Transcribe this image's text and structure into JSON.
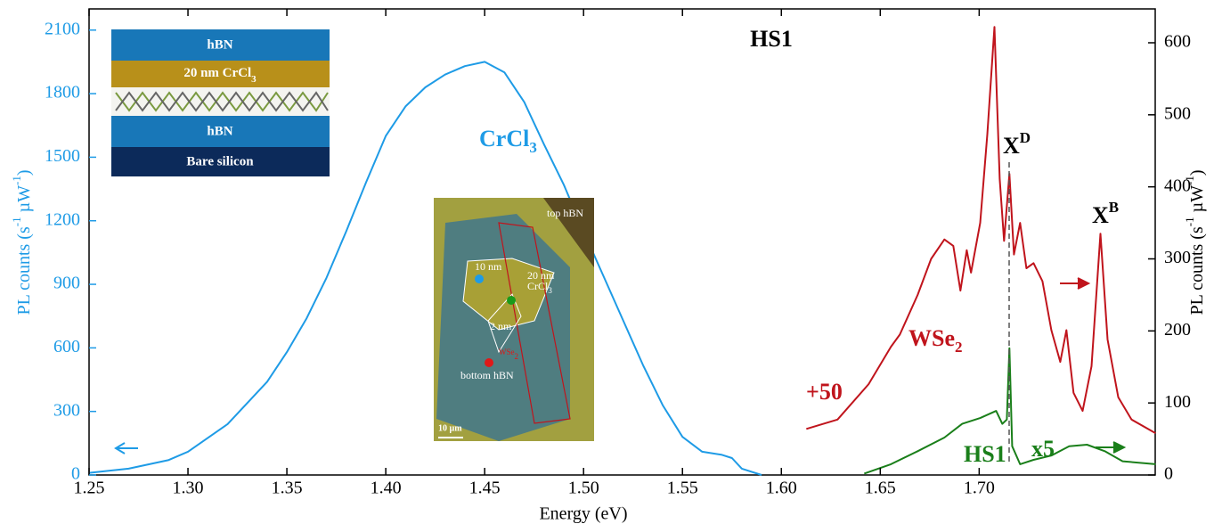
{
  "chart_data": {
    "type": "line",
    "title": "HS1",
    "xlabel": "Energy (eV)",
    "ylabel": [
      "PL counts (s",
      "-1",
      " µW",
      "-1",
      ")"
    ],
    "y2label": [
      "PL counts (s",
      "-1",
      " µW",
      "-1",
      ")"
    ],
    "xlim": [
      1.25,
      1.789
    ],
    "ylim": [
      0,
      2200
    ],
    "y2lim": [
      0,
      647
    ],
    "xticks": [
      1.25,
      {
        "value": 1.3,
        "label": "1.30"
      },
      1.35,
      {
        "value": 1.4,
        "label": "1.40"
      },
      1.45,
      {
        "value": 1.5,
        "label": "1.50"
      },
      1.55,
      {
        "value": 1.6,
        "label": "1.60"
      },
      1.65,
      {
        "value": 1.7,
        "label": "1.70"
      }
    ],
    "yticks": [
      0,
      300,
      600,
      900,
      1200,
      1500,
      1800,
      2100
    ],
    "y2ticks": [
      0,
      100,
      200,
      300,
      400,
      500,
      600
    ],
    "series": [
      {
        "color": "#1e9be6",
        "axis": "y",
        "x": [
          1.25,
          1.27,
          1.29,
          1.3,
          1.32,
          1.34,
          1.35,
          1.36,
          1.37,
          1.38,
          1.39,
          1.4,
          1.41,
          1.42,
          1.43,
          1.44,
          1.45,
          1.46,
          1.47,
          1.48,
          1.49,
          1.5,
          1.51,
          1.52,
          1.53,
          1.54,
          1.55,
          1.56,
          1.57,
          1.575,
          1.58,
          1.59
        ],
        "values": [
          10,
          30,
          70,
          110,
          240,
          440,
          580,
          740,
          930,
          1150,
          1380,
          1600,
          1740,
          1830,
          1890,
          1930,
          1950,
          1900,
          1760,
          1560,
          1370,
          1150,
          940,
          730,
          520,
          330,
          180,
          110,
          95,
          80,
          30,
          0
        ]
      },
      {
        "color": "#c0141c",
        "axis": "y2",
        "x": [
          1.6126,
          1.6284,
          1.6441,
          1.6554,
          1.6599,
          1.6689,
          1.6757,
          1.6824,
          1.6869,
          1.6905,
          1.6937,
          1.6959,
          1.7005,
          1.7041,
          1.7077,
          1.7104,
          1.7126,
          1.7153,
          1.7176,
          1.7207,
          1.7239,
          1.7275,
          1.732,
          1.7365,
          1.741,
          1.7441,
          1.7477,
          1.7523,
          1.7568,
          1.7613,
          1.7649,
          1.7703,
          1.777,
          1.7892
        ],
        "values": [
          64,
          77,
          126,
          178,
          195,
          250,
          300,
          327,
          318,
          256,
          312,
          281,
          350,
          473,
          622,
          411,
          325,
          418,
          306,
          350,
          287,
          294,
          269,
          201,
          157,
          201,
          114,
          89,
          151,
          335,
          188,
          108,
          77,
          58
        ]
      },
      {
        "color": "#1a7f1a",
        "axis": "y2",
        "x": [
          1.6419,
          1.6554,
          1.6689,
          1.6824,
          1.6914,
          1.7005,
          1.7086,
          1.7117,
          1.714,
          1.7153,
          1.7167,
          1.7207,
          1.7275,
          1.7365,
          1.7455,
          1.7545,
          1.7635,
          1.7725,
          1.7892
        ],
        "values": [
          2,
          15,
          33,
          52,
          71,
          79,
          89,
          71,
          77,
          176,
          40,
          15,
          21,
          27,
          40,
          42,
          33,
          19,
          15
        ]
      }
    ],
    "labels": [
      {
        "text": "CrCl",
        "sub": "3"
      },
      {
        "text": "+50"
      },
      {
        "text": "WSe",
        "sub": "2"
      },
      {
        "text": "HS1"
      },
      {
        "text": "x5"
      },
      {
        "text": "X",
        "sup": "D"
      },
      {
        "text": "X",
        "sup": "B"
      }
    ],
    "inset_stack": [
      "hBN",
      {
        "text": "20 nm CrCl",
        "sub": "3"
      },
      "hBN",
      "Bare silicon"
    ],
    "inset_image": [
      "top hBN",
      "10 nm",
      "20 nm",
      {
        "text": "CrCl",
        "sub": "3"
      },
      "2 nm",
      {
        "text": "WSe",
        "sub": "2"
      },
      "bottom hBN",
      "10 µm"
    ]
  }
}
